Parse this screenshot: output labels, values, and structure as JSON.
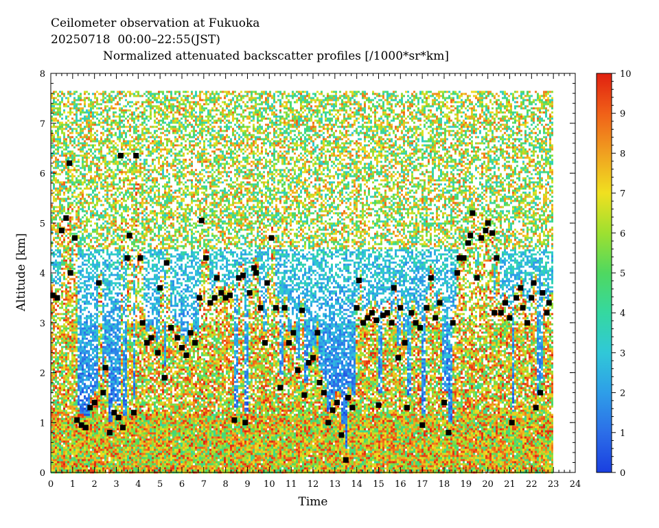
{
  "header": {
    "line1": "Ceilometer observation at Fukuoka",
    "line2": "20250718  00:00–22:55(JST)",
    "line3": "Normalized attenuated backscatter profiles [/1000*sr*km]"
  },
  "chart_data": {
    "type": "heatmap",
    "title": "Normalized attenuated backscatter profiles [/1000*sr*km]",
    "xlabel": "Time",
    "ylabel": "Altitude [km]",
    "xlim": [
      0,
      24
    ],
    "ylim": [
      0,
      8
    ],
    "x_ticks": [
      0,
      1,
      2,
      3,
      4,
      5,
      6,
      7,
      8,
      9,
      10,
      11,
      12,
      13,
      14,
      15,
      16,
      17,
      18,
      19,
      20,
      21,
      22,
      23,
      24
    ],
    "y_ticks": [
      0,
      1,
      2,
      3,
      4,
      5,
      6,
      7,
      8
    ],
    "data_extent": {
      "time_end": 22.92,
      "altitude_top": 7.65
    },
    "colorbar": {
      "min": 0,
      "max": 10,
      "ticks": [
        0,
        1,
        2,
        3,
        4,
        5,
        6,
        7,
        8,
        9,
        10
      ],
      "colors": [
        "#1a3fe0",
        "#2c6ee8",
        "#2e9ee8",
        "#30c8d8",
        "#35d8a0",
        "#4fd860",
        "#9ee030",
        "#f0e020",
        "#f0a020",
        "#f06018",
        "#e02010"
      ]
    },
    "cloud_base_marker": "black square",
    "cloud_base_heights": [
      {
        "t": 0.1,
        "z": 3.55
      },
      {
        "t": 0.3,
        "z": 3.5
      },
      {
        "t": 0.5,
        "z": 4.85
      },
      {
        "t": 0.7,
        "z": 5.1
      },
      {
        "t": 0.85,
        "z": 6.2
      },
      {
        "t": 0.9,
        "z": 4.0
      },
      {
        "t": 1.1,
        "z": 4.7
      },
      {
        "t": 1.2,
        "z": 1.05
      },
      {
        "t": 1.4,
        "z": 0.95
      },
      {
        "t": 1.6,
        "z": 0.9
      },
      {
        "t": 1.8,
        "z": 1.3
      },
      {
        "t": 2.0,
        "z": 1.4
      },
      {
        "t": 2.2,
        "z": 3.8
      },
      {
        "t": 2.4,
        "z": 1.6
      },
      {
        "t": 2.5,
        "z": 2.1
      },
      {
        "t": 2.7,
        "z": 0.8
      },
      {
        "t": 2.9,
        "z": 1.2
      },
      {
        "t": 3.1,
        "z": 1.1
      },
      {
        "t": 3.2,
        "z": 6.35
      },
      {
        "t": 3.3,
        "z": 0.9
      },
      {
        "t": 3.5,
        "z": 4.3
      },
      {
        "t": 3.6,
        "z": 4.75
      },
      {
        "t": 3.8,
        "z": 1.2
      },
      {
        "t": 3.9,
        "z": 6.35
      },
      {
        "t": 4.1,
        "z": 4.3
      },
      {
        "t": 4.2,
        "z": 3.0
      },
      {
        "t": 4.4,
        "z": 2.6
      },
      {
        "t": 4.6,
        "z": 2.7
      },
      {
        "t": 4.9,
        "z": 2.4
      },
      {
        "t": 5.0,
        "z": 3.7
      },
      {
        "t": 5.2,
        "z": 1.9
      },
      {
        "t": 5.3,
        "z": 4.2
      },
      {
        "t": 5.5,
        "z": 2.9
      },
      {
        "t": 5.8,
        "z": 2.7
      },
      {
        "t": 6.0,
        "z": 2.5
      },
      {
        "t": 6.2,
        "z": 2.35
      },
      {
        "t": 6.4,
        "z": 2.8
      },
      {
        "t": 6.6,
        "z": 2.6
      },
      {
        "t": 6.8,
        "z": 3.5
      },
      {
        "t": 6.9,
        "z": 5.05
      },
      {
        "t": 7.1,
        "z": 4.3
      },
      {
        "t": 7.3,
        "z": 3.4
      },
      {
        "t": 7.5,
        "z": 3.5
      },
      {
        "t": 7.6,
        "z": 3.9
      },
      {
        "t": 7.8,
        "z": 3.6
      },
      {
        "t": 8.0,
        "z": 3.5
      },
      {
        "t": 8.2,
        "z": 3.55
      },
      {
        "t": 8.4,
        "z": 1.05
      },
      {
        "t": 8.6,
        "z": 3.9
      },
      {
        "t": 8.8,
        "z": 3.95
      },
      {
        "t": 8.9,
        "z": 1.0
      },
      {
        "t": 9.1,
        "z": 3.6
      },
      {
        "t": 9.3,
        "z": 4.1
      },
      {
        "t": 9.4,
        "z": 4.0
      },
      {
        "t": 9.6,
        "z": 3.3
      },
      {
        "t": 9.8,
        "z": 2.6
      },
      {
        "t": 9.9,
        "z": 3.8
      },
      {
        "t": 10.1,
        "z": 4.7
      },
      {
        "t": 10.3,
        "z": 3.3
      },
      {
        "t": 10.5,
        "z": 1.7
      },
      {
        "t": 10.7,
        "z": 3.3
      },
      {
        "t": 10.9,
        "z": 2.6
      },
      {
        "t": 11.1,
        "z": 2.8
      },
      {
        "t": 11.3,
        "z": 2.05
      },
      {
        "t": 11.5,
        "z": 3.25
      },
      {
        "t": 11.6,
        "z": 1.55
      },
      {
        "t": 11.8,
        "z": 2.2
      },
      {
        "t": 12.0,
        "z": 2.3
      },
      {
        "t": 12.2,
        "z": 2.8
      },
      {
        "t": 12.3,
        "z": 1.8
      },
      {
        "t": 12.5,
        "z": 1.6
      },
      {
        "t": 12.7,
        "z": 1.0
      },
      {
        "t": 12.9,
        "z": 1.25
      },
      {
        "t": 13.1,
        "z": 1.4
      },
      {
        "t": 13.3,
        "z": 0.75
      },
      {
        "t": 13.5,
        "z": 0.25
      },
      {
        "t": 13.6,
        "z": 1.5
      },
      {
        "t": 13.8,
        "z": 1.3
      },
      {
        "t": 14.0,
        "z": 3.3
      },
      {
        "t": 14.1,
        "z": 3.85
      },
      {
        "t": 14.3,
        "z": 3.0
      },
      {
        "t": 14.5,
        "z": 3.1
      },
      {
        "t": 14.7,
        "z": 3.2
      },
      {
        "t": 14.9,
        "z": 3.05
      },
      {
        "t": 15.0,
        "z": 1.35
      },
      {
        "t": 15.2,
        "z": 3.15
      },
      {
        "t": 15.4,
        "z": 3.2
      },
      {
        "t": 15.6,
        "z": 3.0
      },
      {
        "t": 15.7,
        "z": 3.7
      },
      {
        "t": 15.9,
        "z": 2.3
      },
      {
        "t": 16.0,
        "z": 3.3
      },
      {
        "t": 16.2,
        "z": 2.6
      },
      {
        "t": 16.3,
        "z": 1.3
      },
      {
        "t": 16.5,
        "z": 3.2
      },
      {
        "t": 16.7,
        "z": 3.0
      },
      {
        "t": 16.9,
        "z": 2.9
      },
      {
        "t": 17.0,
        "z": 0.95
      },
      {
        "t": 17.2,
        "z": 3.3
      },
      {
        "t": 17.4,
        "z": 3.9
      },
      {
        "t": 17.6,
        "z": 3.1
      },
      {
        "t": 17.8,
        "z": 3.4
      },
      {
        "t": 18.0,
        "z": 1.4
      },
      {
        "t": 18.2,
        "z": 0.8
      },
      {
        "t": 18.4,
        "z": 3.0
      },
      {
        "t": 18.6,
        "z": 4.0
      },
      {
        "t": 18.7,
        "z": 4.3
      },
      {
        "t": 18.9,
        "z": 4.3
      },
      {
        "t": 19.1,
        "z": 4.6
      },
      {
        "t": 19.2,
        "z": 4.75
      },
      {
        "t": 19.3,
        "z": 5.2
      },
      {
        "t": 19.5,
        "z": 3.9
      },
      {
        "t": 19.7,
        "z": 4.7
      },
      {
        "t": 19.9,
        "z": 4.85
      },
      {
        "t": 20.0,
        "z": 5.0
      },
      {
        "t": 20.2,
        "z": 4.8
      },
      {
        "t": 20.3,
        "z": 3.2
      },
      {
        "t": 20.4,
        "z": 4.3
      },
      {
        "t": 20.6,
        "z": 3.2
      },
      {
        "t": 20.8,
        "z": 3.4
      },
      {
        "t": 21.0,
        "z": 3.1
      },
      {
        "t": 21.1,
        "z": 1.0
      },
      {
        "t": 21.3,
        "z": 3.5
      },
      {
        "t": 21.5,
        "z": 3.7
      },
      {
        "t": 21.6,
        "z": 3.3
      },
      {
        "t": 21.8,
        "z": 3.0
      },
      {
        "t": 22.0,
        "z": 3.5
      },
      {
        "t": 22.1,
        "z": 3.8
      },
      {
        "t": 22.2,
        "z": 1.3
      },
      {
        "t": 22.4,
        "z": 1.6
      },
      {
        "t": 22.5,
        "z": 3.6
      },
      {
        "t": 22.7,
        "z": 3.2
      },
      {
        "t": 22.8,
        "z": 3.4
      }
    ]
  }
}
